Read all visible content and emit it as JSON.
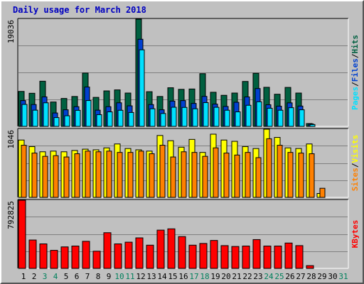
{
  "title": "Daily usage for March 2018",
  "colors": {
    "background": "#c0c0c0",
    "title": "#0000c0",
    "hits": "#006040",
    "files": "#0040d0",
    "pages": "#00e0ff",
    "visits": "#ffff00",
    "sites": "#ff8000",
    "kbytes": "#ff0000",
    "weekend_label": "#00805c",
    "weekday_label": "#000000"
  },
  "chart_data": [
    {
      "type": "bar",
      "name": "hits-files-pages",
      "max_label": "19036",
      "legend": [
        {
          "key": "pages",
          "label": "Pages"
        },
        {
          "key": "sep1",
          "label": "/"
        },
        {
          "key": "files",
          "label": "Files"
        },
        {
          "key": "sep2",
          "label": "/"
        },
        {
          "key": "hits",
          "label": "Hits"
        }
      ],
      "ylim": [
        0,
        19036
      ],
      "series": [
        {
          "name": "Hits",
          "values": [
            6210,
            5880,
            8020,
            4330,
            4960,
            5310,
            9470,
            5150,
            6300,
            6480,
            5920,
            19036,
            6160,
            5310,
            6860,
            6580,
            6640,
            9360,
            6060,
            5520,
            5920,
            7980,
            9430,
            6940,
            5710,
            6920,
            5920,
            500,
            0,
            0,
            0
          ]
        },
        {
          "name": "Files",
          "values": [
            4580,
            3880,
            5240,
            2380,
            2950,
            3500,
            6990,
            2880,
            3500,
            4190,
            3650,
            15470,
            3880,
            2950,
            4490,
            4580,
            4080,
            5330,
            3960,
            3540,
            4280,
            5230,
            6720,
            3840,
            3590,
            4180,
            3610,
            430,
            0,
            0,
            0
          ]
        },
        {
          "name": "Pages",
          "values": [
            3900,
            2880,
            4190,
            1560,
            1890,
            2850,
            4590,
            2080,
            2580,
            2860,
            2470,
            13600,
            3130,
            2290,
            3400,
            3370,
            3130,
            4220,
            3390,
            2870,
            2580,
            3750,
            4370,
            3220,
            2870,
            3320,
            2950,
            330,
            0,
            0,
            0
          ]
        }
      ]
    },
    {
      "type": "bar",
      "name": "visits-sites",
      "max_label": "1046",
      "legend": [
        {
          "key": "sites",
          "label": "Sites"
        },
        {
          "key": "sep",
          "label": "/"
        },
        {
          "key": "visits",
          "label": "Visits"
        }
      ],
      "ylim": [
        0,
        1046
      ],
      "series": [
        {
          "name": "Visits",
          "values": [
            880,
            780,
            700,
            710,
            700,
            720,
            740,
            730,
            760,
            820,
            750,
            730,
            710,
            950,
            870,
            770,
            890,
            690,
            970,
            880,
            860,
            780,
            750,
            1046,
            920,
            760,
            750,
            820,
            60,
            0,
            0
          ]
        },
        {
          "name": "Sites",
          "values": [
            800,
            680,
            630,
            640,
            620,
            670,
            710,
            700,
            710,
            690,
            690,
            710,
            670,
            800,
            620,
            700,
            690,
            630,
            760,
            680,
            650,
            690,
            610,
            900,
            800,
            690,
            680,
            670,
            140,
            0,
            0
          ]
        }
      ]
    },
    {
      "type": "bar",
      "name": "kbytes",
      "max_label": "792825",
      "legend": [
        {
          "key": "kbytes",
          "label": "KBytes"
        }
      ],
      "ylim": [
        0,
        792825
      ],
      "series": [
        {
          "name": "KBytes",
          "values": [
            792825,
            330000,
            285000,
            210000,
            250000,
            260000,
            315000,
            200000,
            415000,
            285000,
            305000,
            355000,
            270000,
            445000,
            460000,
            370000,
            270000,
            290000,
            325000,
            265000,
            255000,
            260000,
            335000,
            260000,
            260000,
            295000,
            265000,
            32000,
            0,
            0,
            0
          ]
        }
      ]
    }
  ],
  "days": [
    "1",
    "2",
    "3",
    "4",
    "5",
    "6",
    "7",
    "8",
    "9",
    "10",
    "11",
    "12",
    "13",
    "14",
    "15",
    "16",
    "17",
    "18",
    "19",
    "20",
    "21",
    "22",
    "23",
    "24",
    "25",
    "26",
    "27",
    "28",
    "29",
    "30",
    "31"
  ],
  "weekend_days": [
    3,
    4,
    10,
    11,
    17,
    18,
    24,
    25,
    31
  ]
}
